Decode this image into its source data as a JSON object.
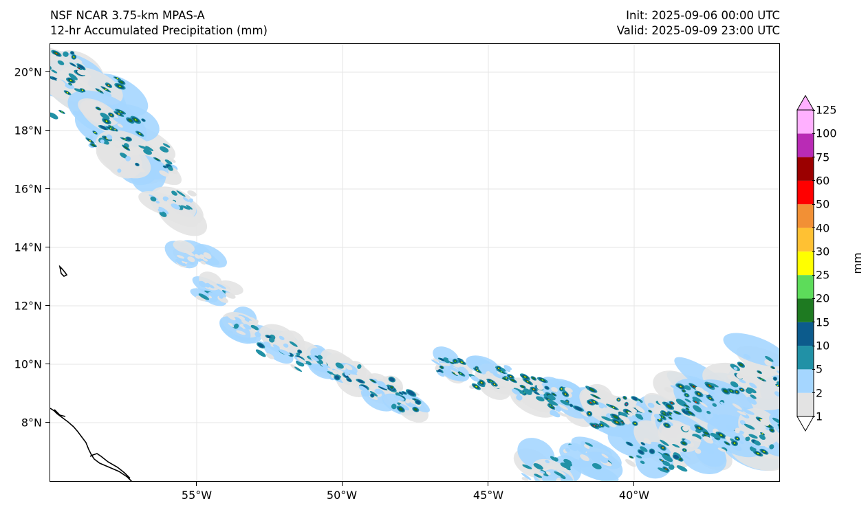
{
  "header": {
    "model": "NSF NCAR 3.75-km MPAS-A",
    "field": "12-hr Accumulated Precipitation (mm)",
    "init": "Init: 2025-09-06 00:00 UTC",
    "valid": "Valid: 2025-09-09 23:00 UTC"
  },
  "map": {
    "latitude_labels": [
      "20°N",
      "18°N",
      "16°N",
      "14°N",
      "12°N",
      "10°N",
      "8°N"
    ],
    "longitude_labels": [
      "55°W",
      "50°W",
      "45°W",
      "40°W"
    ],
    "gridlines": true
  },
  "colorbar": {
    "levels": [
      "1",
      "2",
      "5",
      "10",
      "15",
      "20",
      "25",
      "30",
      "40",
      "50",
      "60",
      "75",
      "100",
      "125"
    ],
    "colors": [
      "#e3e3e3",
      "#a5d6ff",
      "#2191a6",
      "#0c5b8c",
      "#1e7a21",
      "#5ddc5a",
      "#ffff00",
      "#ffc133",
      "#f29035",
      "#ff0000",
      "#9b0000",
      "#b92bb5",
      "#ffb0ff"
    ],
    "unit": "mm",
    "extend": "both"
  }
}
